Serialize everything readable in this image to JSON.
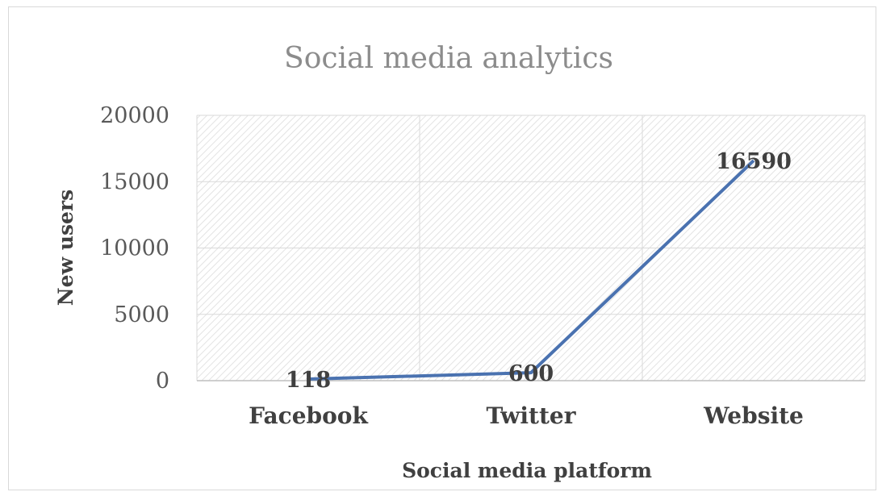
{
  "chart_data": {
    "type": "line",
    "title": "Social media analytics",
    "xlabel": "Social media platform",
    "ylabel": "New users",
    "categories": [
      "Facebook",
      "Twitter",
      "Website"
    ],
    "values": [
      118,
      600,
      16590
    ],
    "ylim": [
      0,
      20000
    ],
    "yticks": [
      "0",
      "5000",
      "10000",
      "15000",
      "20000"
    ],
    "grid": true,
    "legend": "none",
    "series_color": "#4a72b0",
    "plot_pattern": "diagonal-hatch"
  }
}
